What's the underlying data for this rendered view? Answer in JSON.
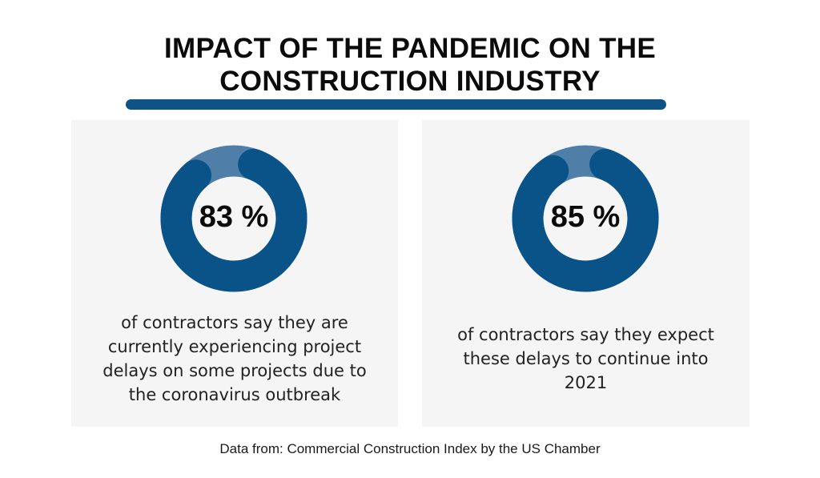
{
  "header": {
    "title_line1": "IMPACT OF THE PANDEMIC ON THE",
    "title_line2": "CONSTRUCTION INDUSTRY"
  },
  "colors": {
    "accent": "#0d5386",
    "ring_dark": "#0a5389",
    "ring_light": "#4f7fa8",
    "panel": "#f5f5f5"
  },
  "chart_data": [
    {
      "type": "pie",
      "variant": "donut",
      "value": 83,
      "remainder": 17,
      "label": "83 %",
      "description": [
        "of contractors say they are",
        "currently experiencing project",
        "delays on some projects due to",
        "the coronavirus outbreak"
      ]
    },
    {
      "type": "pie",
      "variant": "donut",
      "value": 85,
      "remainder": 15,
      "label": "85 %",
      "description": [
        "of contractors say they expect",
        "these delays to continue into",
        "2021"
      ]
    }
  ],
  "footer": {
    "source": "Data from: Commercial Construction Index by the US Chamber"
  }
}
